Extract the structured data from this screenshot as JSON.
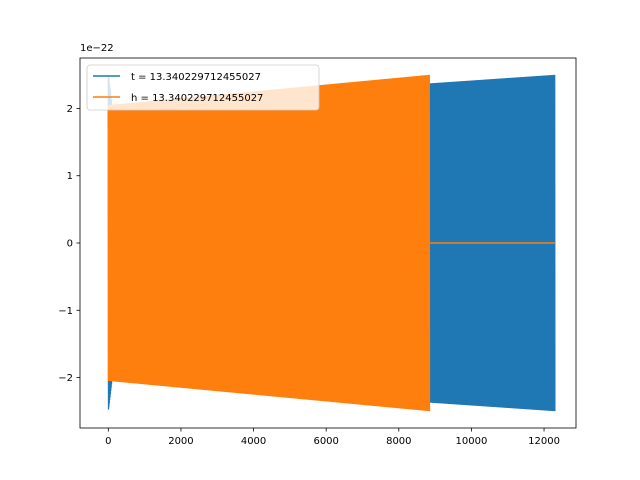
{
  "chart_data": {
    "type": "line",
    "title": "",
    "xlabel": "",
    "ylabel": "",
    "xlim": [
      -780,
      12880
    ],
    "ylim": [
      -2.75,
      2.75
    ],
    "y_scale_factor_label": "1e−22",
    "x_ticks": [
      0,
      2000,
      4000,
      6000,
      8000,
      10000,
      12000
    ],
    "x_tick_labels": [
      "0",
      "2000",
      "4000",
      "6000",
      "8000",
      "10000",
      "12000"
    ],
    "y_ticks": [
      -2,
      -1,
      0,
      1,
      2
    ],
    "y_tick_labels": [
      "−2",
      "−1",
      "0",
      "1",
      "2"
    ],
    "grid": false,
    "legend_position": "upper-left",
    "series": [
      {
        "name": "t = 13.340229712455027",
        "color": "#1f77b4",
        "x_range": [
          0,
          12300
        ],
        "amplitude_start": 2.5,
        "amplitude_min": 2.05,
        "amplitude_min_at": 100,
        "amplitude_end": 2.5
      },
      {
        "name": "h = 13.340229712455027",
        "color": "#ff7f0e",
        "x_range": [
          0,
          8850
        ],
        "amplitude_start": 2.05,
        "amplitude_end": 2.5,
        "flat_after": 8850,
        "flat_until": 12300,
        "flat_value": 0
      }
    ]
  }
}
